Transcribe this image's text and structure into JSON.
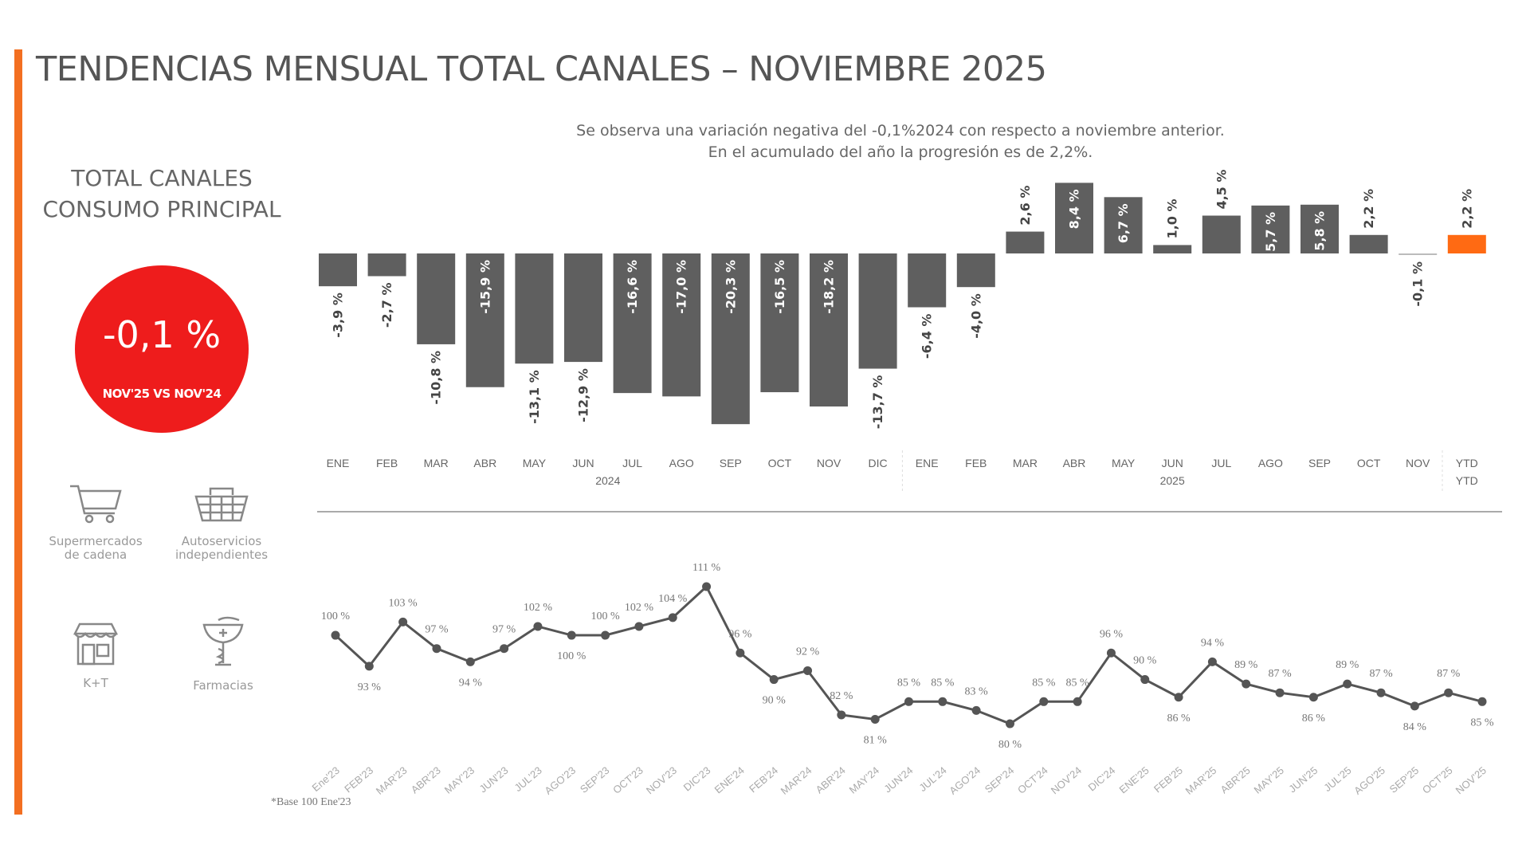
{
  "title": "TENDENCIAS MENSUAL TOTAL CANALES – NOVIEMBRE 2025",
  "subtitle_lines": [
    "Se observa una variación negativa del -0,1%2024 con respecto a noviembre anterior.",
    "En el acumulado del año la progresión es de 2,2%."
  ],
  "panel": {
    "title_line1": "TOTAL CANALES",
    "title_line2": "CONSUMO PRINCIPAL",
    "kpi_value": "-0,1 %",
    "kpi_label": "NOV'25 VS NOV'24",
    "kpi_color": "#ee1c1c",
    "channels": [
      {
        "icon": "shopping-cart-icon",
        "label1": "Supermercados",
        "label2": "de cadena"
      },
      {
        "icon": "shopping-basket-icon",
        "label1": "Autoservicios",
        "label2": "independientes"
      },
      {
        "icon": "storefront-icon",
        "label1": "K+T",
        "label2": ""
      },
      {
        "icon": "pharmacy-bowl-icon",
        "label1": "Farmacias",
        "label2": ""
      }
    ]
  },
  "accent_color": "#f36f21",
  "chart_data": [
    {
      "type": "bar",
      "categories": [
        "ENE",
        "FEB",
        "MAR",
        "ABR",
        "MAY",
        "JUN",
        "JUL",
        "AGO",
        "SEP",
        "OCT",
        "NOV",
        "DIC",
        "ENE",
        "FEB",
        "MAR",
        "ABR",
        "MAY",
        "JUN",
        "JUL",
        "AGO",
        "SEP",
        "OCT",
        "NOV",
        "YTD"
      ],
      "groups": [
        {
          "label": "2024",
          "count": 12
        },
        {
          "label": "2025",
          "count": 11
        },
        {
          "label": "YTD",
          "count": 1
        }
      ],
      "values": [
        -3.9,
        -2.7,
        -10.8,
        -15.9,
        -13.1,
        -12.9,
        -16.6,
        -17.0,
        -20.3,
        -16.5,
        -18.2,
        -13.7,
        -6.4,
        -4.0,
        2.6,
        8.4,
        6.7,
        1.0,
        4.5,
        5.7,
        5.8,
        2.2,
        -0.1,
        2.2
      ],
      "data_labels": [
        "-3,9 %",
        "-2,7 %",
        "-10,8 %",
        "-15,9 %",
        "-13,1 %",
        "-12,9 %",
        "-16,6 %",
        "-17,0 %",
        "-20,3 %",
        "-16,5 %",
        "-18,2 %",
        "-13,7 %",
        "-6,4 %",
        "-4,0 %",
        "2,6 %",
        "8,4 %",
        "6,7 %",
        "1,0 %",
        "4,5 %",
        "5,7 %",
        "5,8 %",
        "2,2 %",
        "-0,1 %",
        "2,2 %"
      ],
      "unit": "%",
      "colors": {
        "bar": "#5f5f5f",
        "highlight": "#ff6a13",
        "near_zero": "#bbbbbb"
      },
      "grid": false
    },
    {
      "type": "line",
      "categories": [
        "Ene'23",
        "FEB'23",
        "MAR'23",
        "ABR'23",
        "MAY'23",
        "JUN'23",
        "JUL'23",
        "AGO'23",
        "SEP'23",
        "OCT'23",
        "NOV'23",
        "DIC'23",
        "ENE'24",
        "FEB'24",
        "MAR'24",
        "ABR'24",
        "MAY'24",
        "JUN'24",
        "JUL'24",
        "AGO'24",
        "SEP'24",
        "OCT'24",
        "NOV'24",
        "DIC'24",
        "ENE'25",
        "FEB'25",
        "MAR'25",
        "ABR'25",
        "MAY'25",
        "JUN'25",
        "JUL'25",
        "AGO'25",
        "SEP'25",
        "OCT'25",
        "NOV'25"
      ],
      "values": [
        100,
        93,
        103,
        97,
        94,
        97,
        102,
        100,
        100,
        102,
        104,
        111,
        96,
        90,
        92,
        82,
        81,
        85,
        85,
        83,
        80,
        85,
        85,
        96,
        90,
        86,
        94,
        89,
        87,
        86,
        89,
        87,
        84,
        87,
        85
      ],
      "unit": "%",
      "footnote": "*Base 100 Ene'23",
      "color": "#555555",
      "grid": false
    }
  ]
}
